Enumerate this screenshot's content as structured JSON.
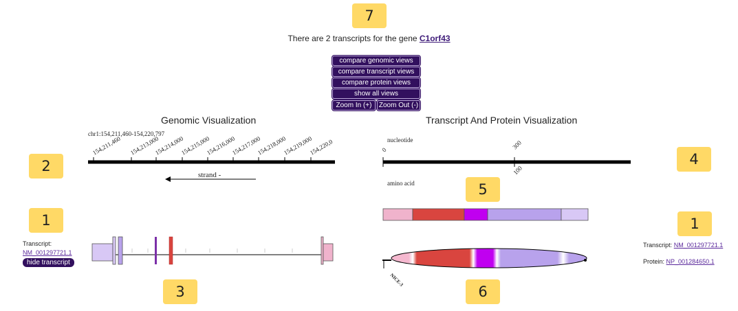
{
  "badges": [
    "7",
    "2",
    "1",
    "3",
    "5",
    "4",
    "1",
    "6"
  ],
  "intro": {
    "text": "There are 2 transcripts for the gene ",
    "gene": "C1orf43"
  },
  "buttons": {
    "compare_genomic": "compare genomic views",
    "compare_transcript": "compare transcript views",
    "compare_protein": "compare protein views",
    "show_all": "show all views",
    "zoom_in": "Zoom In (+)",
    "zoom_out": "Zoom Out (-)"
  },
  "genomic": {
    "title": "Genomic Visualization",
    "coords": "chr1:154,211,460-154,220,797",
    "ticks": [
      "154,211,460",
      "154,213,000",
      "154,214,000",
      "154,215,000",
      "154,216,000",
      "154,217,000",
      "154,218,000",
      "154,219,000",
      "154,220,0"
    ],
    "strand": "strand -"
  },
  "transcript_protein": {
    "title": "Transcript And Protein Visualization",
    "nucleotide_label": "nucleotide",
    "amino_label": "amino acid",
    "nt_ticks": [
      "0",
      "300"
    ],
    "aa_ticks": [
      "100"
    ],
    "domain_label": "NICE-3"
  },
  "left_panel": {
    "label": "Transcript:",
    "transcript_id": "NM_001297721.1",
    "hide_label": "hide transcript"
  },
  "right_panel": {
    "transcript_label": "Transcript:",
    "transcript_id": "NM_001297721.1",
    "protein_label": "Protein:",
    "protein_id": "NP_001284650.1"
  },
  "colors": {
    "badge": "#ffd966",
    "button": "#32105e",
    "utr_light": "#d8c8f5",
    "utr_pink": "#f0b3cc",
    "red_exon": "#d9453f",
    "purple_exon": "#7b2fa8",
    "magenta": "#c000f0",
    "lavender": "#b8a2ec"
  }
}
